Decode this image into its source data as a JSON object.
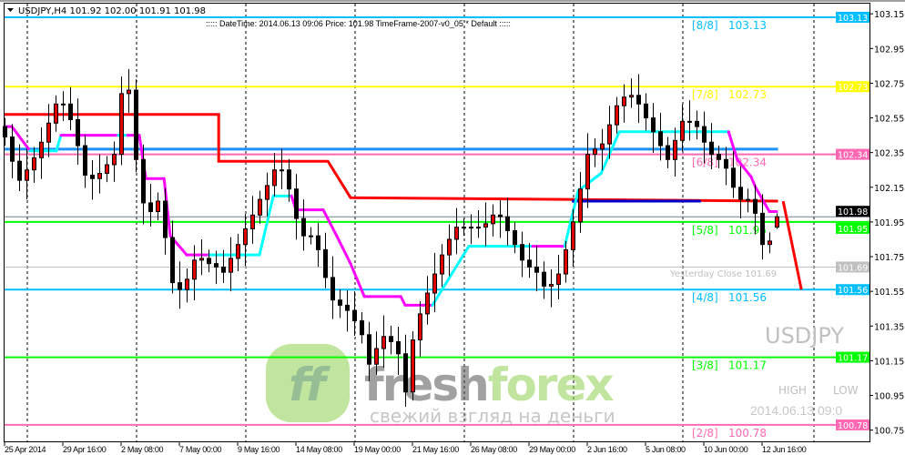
{
  "header": {
    "symbol_line": "USDJPY,H4  101.92 102.00 101.91 101.98",
    "info_line": "::::: DateTime: 2014.06.13 09:06   Price: 101.98   TimeFrame-2007-v0_05   *   Default  :::::"
  },
  "watermark": {
    "symbol": "USDJPY",
    "high_label": "HIGH",
    "low_label": "LOW",
    "datetime": "2014.06.13 09:0",
    "logo_mark": "ff",
    "logo_fresh": "fresh",
    "logo_forex": "forex",
    "logo_slogan": "свежий взгляд на деньги"
  },
  "colors": {
    "background": "#ffffff",
    "bull_body": "#e00000",
    "bear_body": "#000000",
    "level_blue": "#00bfff",
    "level_yellow": "#ffff00",
    "level_pink": "#ff69b4",
    "level_green": "#00ff00",
    "yesterday_close": "#c0c0c0",
    "pivot_blue": "#1e90ff",
    "red_step": "#ff0000",
    "dark_blue": "#0000cd",
    "trail_magenta": "#ff00ff",
    "trail_cyan": "#00ffff"
  },
  "chart_data": {
    "type": "candlestick",
    "symbol": "USDJPY",
    "timeframe": "H4",
    "ylim": [
      100.73,
      103.17
    ],
    "grid": true,
    "y_ticks": [
      "103.15",
      "102.95",
      "102.75",
      "102.55",
      "102.35",
      "102.15",
      "101.95",
      "101.75",
      "101.55",
      "101.35",
      "101.15",
      "100.95",
      "100.75"
    ],
    "x_ticks": [
      {
        "bar": 0,
        "label": "25 Apr 2014"
      },
      {
        "bar": 8,
        "label": "29 Apr 16:00"
      },
      {
        "bar": 16,
        "label": "2 May 08:00"
      },
      {
        "bar": 24,
        "label": "7 May 00:00"
      },
      {
        "bar": 32,
        "label": "9 May 16:00"
      },
      {
        "bar": 40,
        "label": "14 May 08:00"
      },
      {
        "bar": 48,
        "label": "19 May 00:00"
      },
      {
        "bar": 56,
        "label": "21 May 16:00"
      },
      {
        "bar": 64,
        "label": "26 May 08:00"
      },
      {
        "bar": 72,
        "label": "29 May 00:00"
      },
      {
        "bar": 80,
        "label": "2 Jun 16:00"
      },
      {
        "bar": 88,
        "label": "5 Jun 08:00"
      },
      {
        "bar": 96,
        "label": "10 Jun 00:00"
      },
      {
        "bar": 104,
        "label": "12 Jun 16:00"
      }
    ],
    "close": [
      102.44,
      102.3,
      102.19,
      102.25,
      102.32,
      102.41,
      102.52,
      102.63,
      102.63,
      102.54,
      102.39,
      102.22,
      102.2,
      102.23,
      102.28,
      102.34,
      102.69,
      102.71,
      102.31,
      102.06,
      102.01,
      102.07,
      101.86,
      101.6,
      101.56,
      101.62,
      101.73,
      101.74,
      101.71,
      101.69,
      101.66,
      101.74,
      101.82,
      101.91,
      101.99,
      102.08,
      102.16,
      102.25,
      102.25,
      102.14,
      101.97,
      101.87,
      101.87,
      101.79,
      101.63,
      101.5,
      101.47,
      101.44,
      101.38,
      101.3,
      101.13,
      101.22,
      101.29,
      101.26,
      101.19,
      100.97,
      101.27,
      101.42,
      101.54,
      101.65,
      101.76,
      101.85,
      101.92,
      101.92,
      101.92,
      101.92,
      101.94,
      101.99,
      101.98,
      101.9,
      101.82,
      101.73,
      101.69,
      101.66,
      101.58,
      101.59,
      101.65,
      101.79,
      101.95,
      102.14,
      102.34,
      102.37,
      102.4,
      102.51,
      102.62,
      102.67,
      102.68,
      102.63,
      102.55,
      102.47,
      102.39,
      102.31,
      102.42,
      102.53,
      102.53,
      102.5,
      102.41,
      102.34,
      102.31,
      102.26,
      102.15,
      102.08,
      102.08,
      102.0,
      101.82,
      101.84,
      101.98
    ],
    "last_bar": {
      "open": 101.92,
      "high": 102.0,
      "low": 101.91,
      "close": 101.98
    },
    "current_price": "101.98",
    "murrey_levels": [
      {
        "label": "[8/8]",
        "value": "103.13",
        "color": "#00bfff"
      },
      {
        "label": "[7/8]",
        "value": "102.73",
        "color": "#ffff00"
      },
      {
        "label": "[6/8]",
        "value": "102.34",
        "color": "#ff69b4"
      },
      {
        "label": "[5/8]",
        "value": "101.95",
        "color": "#00ff00"
      },
      {
        "label": "[4/8]",
        "value": "101.56",
        "color": "#00bfff"
      },
      {
        "label": "[3/8]",
        "value": "101.17",
        "color": "#00ff00"
      },
      {
        "label": "[2/8]",
        "value": "100.78",
        "color": "#ff69b4"
      }
    ],
    "yesterday_close": {
      "label": "Yesterday Close 101.69",
      "value": "101.69"
    },
    "pivot_line": 102.37,
    "red_step": [
      [
        0,
        102.57
      ],
      [
        29.4,
        102.57
      ],
      [
        29.4,
        102.3
      ],
      [
        44.4,
        102.3
      ],
      [
        47.5,
        102.09
      ],
      [
        106.2,
        102.07
      ]
    ],
    "dark_blue_segment": [
      [
        77.9,
        102.07
      ],
      [
        95.6,
        102.07
      ]
    ],
    "trail_line": [
      [
        0,
        102.5,
        "c"
      ],
      [
        1,
        102.5,
        "m"
      ],
      [
        3.5,
        102.36,
        "m"
      ],
      [
        4.75,
        102.36,
        "c"
      ],
      [
        7.1,
        102.36,
        "c"
      ],
      [
        7.75,
        102.45,
        "c"
      ],
      [
        9,
        102.45,
        "m"
      ],
      [
        15.6,
        102.45,
        "m"
      ],
      [
        16.9,
        102.45,
        "c"
      ],
      [
        18.5,
        102.45,
        "m"
      ],
      [
        19.4,
        102.2,
        "m"
      ],
      [
        21.9,
        102.2,
        "m"
      ],
      [
        22.75,
        101.87,
        "m"
      ],
      [
        24.4,
        101.79,
        "m"
      ],
      [
        25,
        101.76,
        "m"
      ],
      [
        28.1,
        101.76,
        "m"
      ],
      [
        35,
        101.76,
        "c"
      ],
      [
        36.9,
        102.1,
        "c"
      ],
      [
        39.4,
        102.1,
        "c"
      ],
      [
        40,
        102.02,
        "m"
      ],
      [
        43.75,
        102.02,
        "m"
      ],
      [
        45.6,
        101.87,
        "m"
      ],
      [
        47.5,
        101.71,
        "m"
      ],
      [
        49.4,
        101.52,
        "m"
      ],
      [
        54.4,
        101.52,
        "m"
      ],
      [
        55,
        101.47,
        "m"
      ],
      [
        58.75,
        101.47,
        "m"
      ],
      [
        63,
        101.76,
        "c"
      ],
      [
        63.75,
        101.81,
        "c"
      ],
      [
        72.5,
        101.81,
        "c"
      ],
      [
        76.9,
        101.81,
        "m"
      ],
      [
        78.75,
        102.13,
        "c"
      ],
      [
        81.9,
        102.23,
        "c"
      ],
      [
        84.4,
        102.47,
        "c"
      ],
      [
        99.4,
        102.47,
        "c"
      ],
      [
        100.6,
        102.31,
        "m"
      ],
      [
        102.5,
        102.21,
        "m"
      ],
      [
        103.1,
        102.15,
        "m"
      ],
      [
        105,
        102.01,
        "m"
      ],
      [
        106,
        102.01,
        "m"
      ]
    ],
    "forecast_line": [
      [
        106.9,
        102.07
      ],
      [
        109.4,
        101.56
      ]
    ]
  }
}
